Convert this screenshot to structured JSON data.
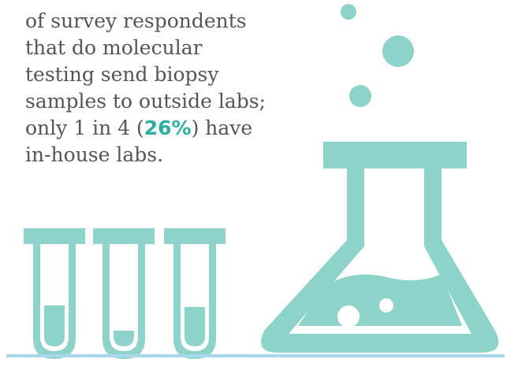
{
  "text": {
    "lines": [
      "of survey respondents",
      "that do molecular",
      "testing send biopsy",
      "samples to outside labs;"
    ],
    "highlight_line": {
      "before": "only 1 in 4 (",
      "highlight": "26%",
      "after": ") have"
    },
    "last_line": "in-house labs."
  }
}
